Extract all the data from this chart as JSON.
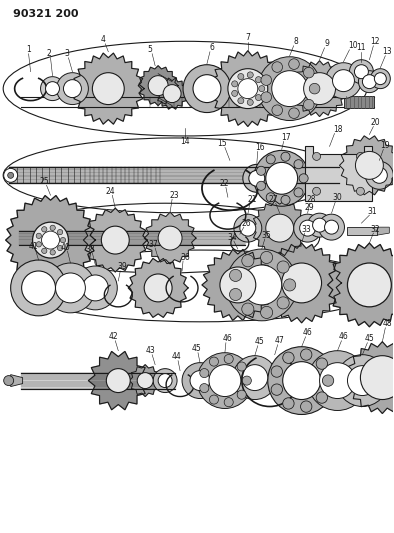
{
  "title": "90321 200",
  "bg_color": "#ffffff",
  "line_color": "#1a1a1a",
  "fig_width": 3.94,
  "fig_height": 5.33,
  "dpi": 100,
  "gray_fill": "#b0b0b0",
  "dark_fill": "#505050",
  "mid_fill": "#808080"
}
